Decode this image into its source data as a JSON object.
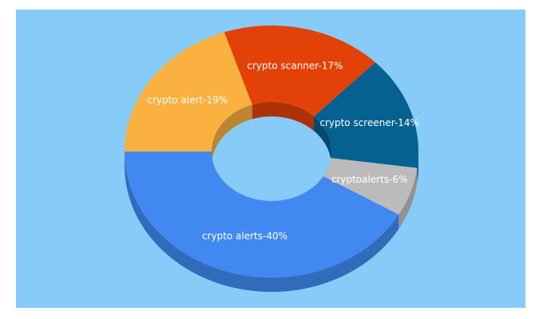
{
  "chart_data": {
    "type": "donut3d",
    "values": [
      19,
      17,
      14,
      6,
      40
    ],
    "value_labels": [
      "crypto alert-19%",
      "crypto scanner-17%",
      "crypto screener-14%",
      "cryptoalerts-6%",
      "crypto alerts-40%"
    ],
    "colors": [
      "#fab13f",
      "#e24207",
      "#05618f",
      "#bbbbbb",
      "#4189f0"
    ]
  }
}
